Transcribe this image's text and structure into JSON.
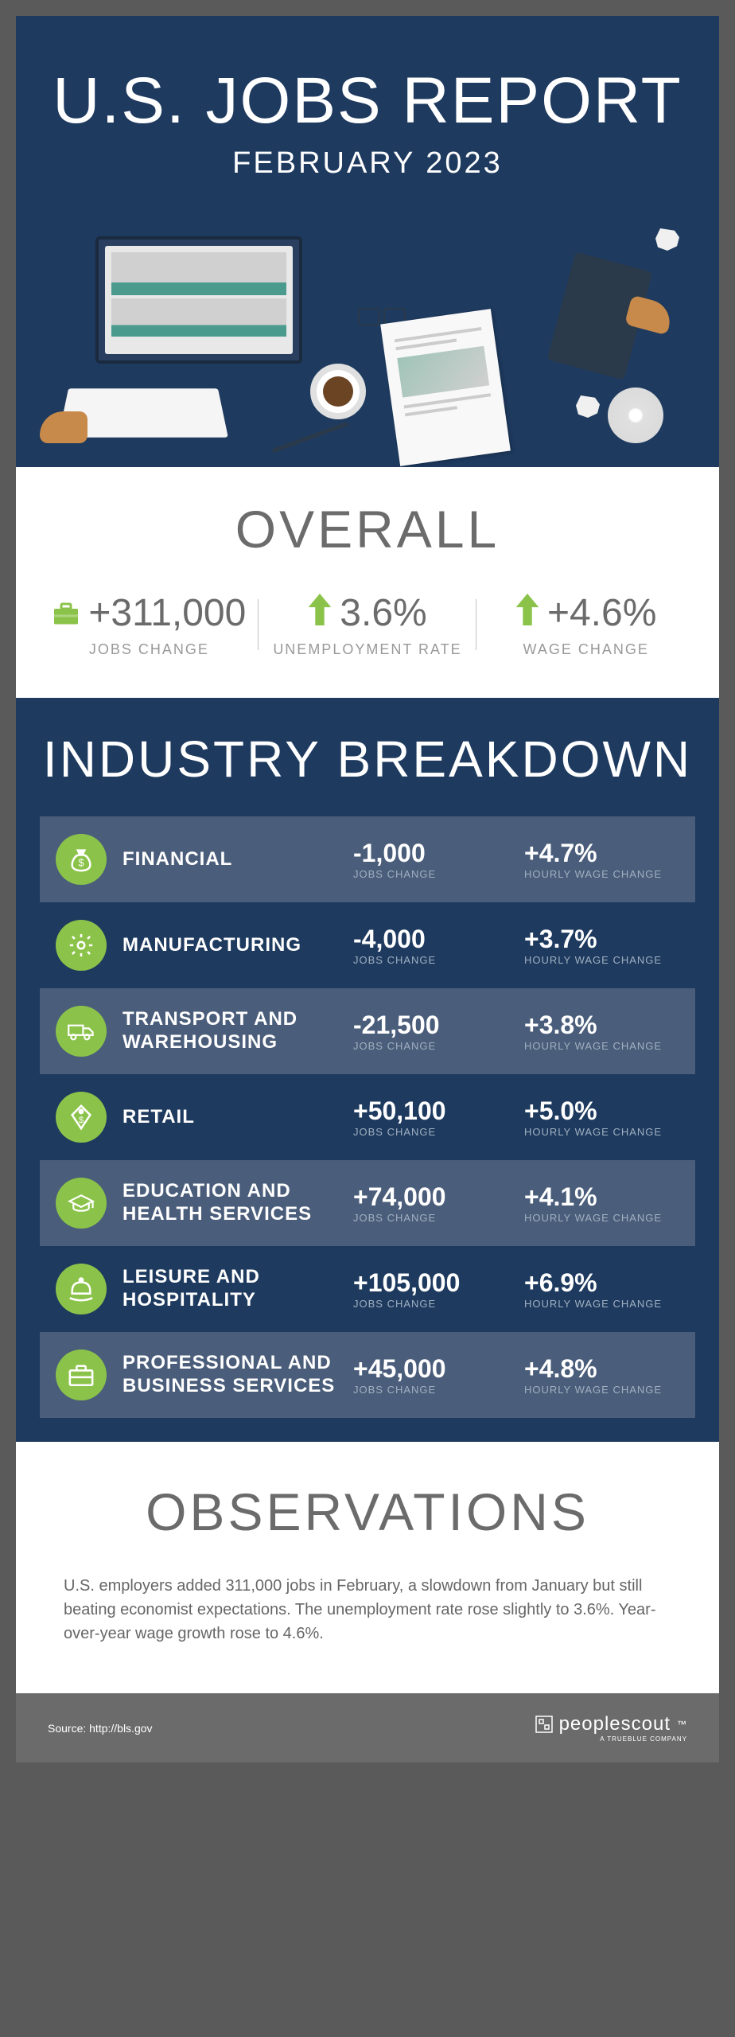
{
  "header": {
    "title": "U.S. JOBS REPORT",
    "subtitle": "FEBRUARY 2023"
  },
  "colors": {
    "dark_blue": "#1e3a5f",
    "alt_blue": "#4a5d7a",
    "green": "#8bc34a",
    "gray_text": "#6b6b6b",
    "light_gray": "#999999",
    "white": "#ffffff"
  },
  "overall": {
    "title": "OVERALL",
    "stats": [
      {
        "value": "+311,000",
        "label": "JOBS CHANGE",
        "icon": "briefcase"
      },
      {
        "value": "3.6%",
        "label": "UNEMPLOYMENT RATE",
        "icon": "arrow-up"
      },
      {
        "value": "+4.6%",
        "label": "WAGE CHANGE",
        "icon": "arrow-up"
      }
    ]
  },
  "industry": {
    "title": "INDUSTRY BREAKDOWN",
    "jobs_label": "JOBS CHANGE",
    "wage_label": "HOURLY WAGE CHANGE",
    "rows": [
      {
        "name": "FINANCIAL",
        "jobs": "-1,000",
        "wage": "+4.7%",
        "icon": "money-bag",
        "alt": true
      },
      {
        "name": "MANUFACTURING",
        "jobs": "-4,000",
        "wage": "+3.7%",
        "icon": "gear",
        "alt": false
      },
      {
        "name": "TRANSPORT AND WAREHOUSING",
        "jobs": "-21,500",
        "wage": "+3.8%",
        "icon": "truck",
        "alt": true
      },
      {
        "name": "RETAIL",
        "jobs": "+50,100",
        "wage": "+5.0%",
        "icon": "price-tag",
        "alt": false
      },
      {
        "name": "EDUCATION AND HEALTH SERVICES",
        "jobs": "+74,000",
        "wage": "+4.1%",
        "icon": "grad-cap",
        "alt": true
      },
      {
        "name": "LEISURE AND HOSPITALITY",
        "jobs": "+105,000",
        "wage": "+6.9%",
        "icon": "bell",
        "alt": false
      },
      {
        "name": "PROFESSIONAL AND BUSINESS SERVICES",
        "jobs": "+45,000",
        "wage": "+4.8%",
        "icon": "briefcase2",
        "alt": true
      }
    ]
  },
  "observations": {
    "title": "OBSERVATIONS",
    "text": "U.S. employers added 311,000 jobs in February, a slowdown from January but still beating economist expectations. The unemployment rate rose slightly to 3.6%. Year-over-year wage growth rose to 4.6%."
  },
  "footer": {
    "source": "Source: http://bls.gov",
    "logo": "peoplescout",
    "logo_sub": "A TRUEBLUE COMPANY"
  }
}
